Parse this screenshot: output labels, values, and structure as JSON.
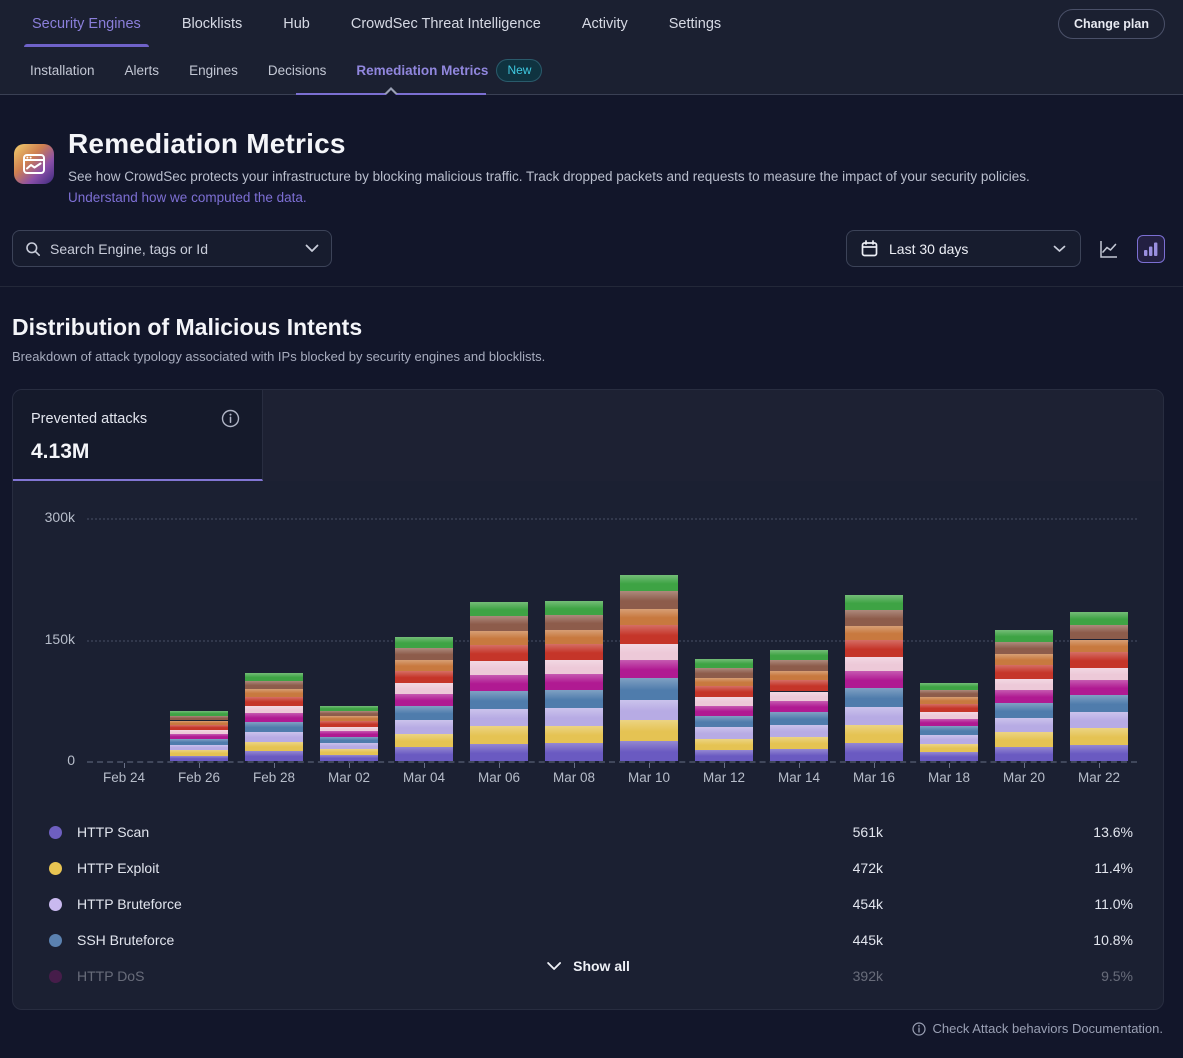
{
  "nav": {
    "items": [
      {
        "label": "Security Engines",
        "active": true
      },
      {
        "label": "Blocklists",
        "active": false
      },
      {
        "label": "Hub",
        "active": false
      },
      {
        "label": "CrowdSec Threat Intelligence",
        "active": false
      },
      {
        "label": "Activity",
        "active": false
      },
      {
        "label": "Settings",
        "active": false
      }
    ],
    "change_plan_label": "Change plan"
  },
  "subnav": {
    "items": [
      {
        "label": "Installation",
        "active": false
      },
      {
        "label": "Alerts",
        "active": false
      },
      {
        "label": "Engines",
        "active": false
      },
      {
        "label": "Decisions",
        "active": false
      },
      {
        "label": "Remediation Metrics",
        "active": true
      }
    ],
    "new_badge": "New"
  },
  "header": {
    "title": "Remediation Metrics",
    "description": "See how CrowdSec protects your infrastructure by blocking malicious traffic. Track dropped packets and requests to measure the impact of your security policies.",
    "link": "Understand how we computed the data."
  },
  "filters": {
    "search_placeholder": "Search Engine, tags or Id",
    "date_range": "Last 30 days"
  },
  "section": {
    "title": "Distribution of Malicious Intents",
    "subtitle": "Breakdown of attack typology associated with IPs blocked by security engines and blocklists."
  },
  "stat_card": {
    "label": "Prevented attacks",
    "value": "4.13M"
  },
  "chart_data": {
    "type": "bar",
    "stacked": true,
    "title": "Prevented attacks",
    "values_unit": "thousands",
    "ylim": [
      0,
      300000
    ],
    "ytick_labels": [
      "0",
      "150k",
      "300k"
    ],
    "grid": "dotted-horizontal",
    "categories": [
      "Feb 24",
      "Feb 26",
      "Feb 28",
      "Mar 02",
      "Mar 04",
      "Mar 06",
      "Mar 08",
      "Mar 10",
      "Mar 12",
      "Mar 14",
      "Mar 16",
      "Mar 18",
      "Mar 20",
      "Mar 22"
    ],
    "series": [
      {
        "name": "HTTP Scan",
        "color": "#6a5ac1",
        "values": [
          0,
          6.7,
          11.9,
          7.4,
          16.7,
          21.5,
          21.7,
          25.2,
          13.8,
          15.0,
          22.4,
          10.6,
          17.7,
          20.1
        ]
      },
      {
        "name": "HTTP Exploit",
        "color": "#e5c353",
        "values": [
          0,
          6.7,
          11.9,
          7.4,
          16.7,
          21.5,
          21.7,
          25.2,
          13.8,
          15.0,
          22.4,
          10.6,
          17.7,
          20.1
        ]
      },
      {
        "name": "HTTP Bruteforce",
        "color": "#b7abe4",
        "values": [
          0,
          6.7,
          11.9,
          7.4,
          16.7,
          21.5,
          21.7,
          25.2,
          13.8,
          15.0,
          22.4,
          10.6,
          17.7,
          20.1
        ]
      },
      {
        "name": "SSH Bruteforce",
        "color": "#4f7cac",
        "values": [
          0,
          7.0,
          12.4,
          7.7,
          17.5,
          22.4,
          22.7,
          26.3,
          14.4,
          15.6,
          23.5,
          11.0,
          18.5,
          21.0
        ]
      },
      {
        "name": "HTTP DoS",
        "color": "#b01a92",
        "values": [
          0,
          6.1,
          10.8,
          6.7,
          15.2,
          19.5,
          19.7,
          22.9,
          12.5,
          13.6,
          20.4,
          9.6,
          16.1,
          18.3
        ]
      },
      {
        "name": "unlabeled-pink",
        "color": "#edc9d8",
        "values": [
          0,
          5.2,
          9.2,
          5.7,
          12.9,
          16.6,
          16.7,
          19.5,
          10.6,
          11.6,
          17.3,
          8.2,
          13.7,
          15.6
        ]
      },
      {
        "name": "unlabeled-red",
        "color": "#c53529",
        "values": [
          0,
          6.4,
          11.3,
          7.0,
          16.0,
          20.5,
          20.7,
          24.0,
          13.1,
          14.3,
          21.4,
          10.1,
          16.9,
          19.2
        ]
      },
      {
        "name": "unlabeled-orange",
        "color": "#c8793f",
        "values": [
          0,
          5.2,
          9.2,
          5.7,
          12.9,
          16.6,
          16.7,
          19.5,
          10.6,
          11.6,
          17.3,
          8.2,
          13.7,
          15.6
        ]
      },
      {
        "name": "unlabeled-brown",
        "color": "#8d5c4b",
        "values": [
          0,
          5.8,
          10.3,
          6.4,
          14.4,
          18.5,
          18.7,
          21.8,
          11.9,
          12.9,
          19.4,
          9.1,
          15.3,
          17.4
        ]
      },
      {
        "name": "unlabeled-green",
        "color": "#3ea344",
        "values": [
          0,
          5.5,
          9.7,
          6.0,
          13.7,
          17.6,
          17.7,
          20.6,
          11.3,
          12.2,
          18.4,
          8.6,
          14.5,
          16.5
        ]
      }
    ]
  },
  "legend": {
    "rows": [
      {
        "name": "HTTP Scan",
        "color": "#6e5fc0",
        "value": "561k",
        "pct": "13.6%",
        "faded": false
      },
      {
        "name": "HTTP Exploit",
        "color": "#e8c452",
        "value": "472k",
        "pct": "11.4%",
        "faded": false
      },
      {
        "name": "HTTP Bruteforce",
        "color": "#c9b9ef",
        "value": "454k",
        "pct": "11.0%",
        "faded": false
      },
      {
        "name": "SSH Bruteforce",
        "color": "#5b81b0",
        "value": "445k",
        "pct": "10.8%",
        "faded": false
      },
      {
        "name": "HTTP DoS",
        "color": "#8c1a72",
        "value": "392k",
        "pct": "9.5%",
        "faded": true
      }
    ],
    "show_all_label": "Show all"
  },
  "footer": {
    "text": "Check Attack behaviors Documentation."
  }
}
